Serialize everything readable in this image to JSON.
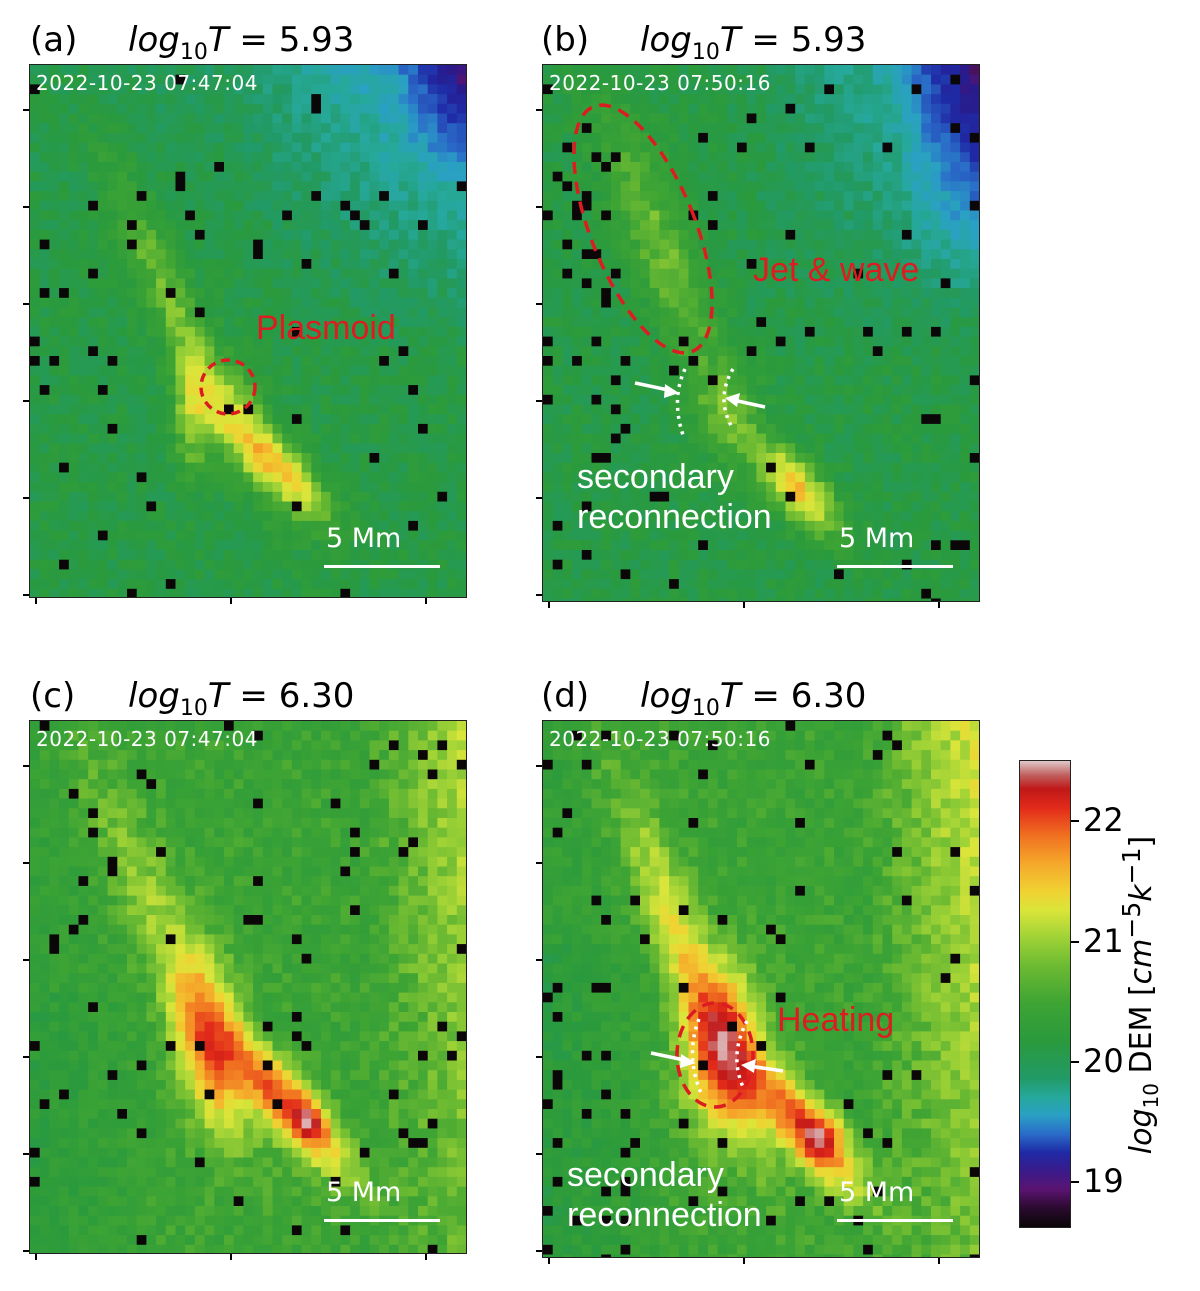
{
  "panels": [
    {
      "letter": "(a)",
      "title_var": "log",
      "title_sub": "10",
      "title_T": "T",
      "title_val": " = 5.93",
      "timestamp": "2022-10-23 07:47:04",
      "scale_label": "5 Mm"
    },
    {
      "letter": "(b)",
      "title_var": "log",
      "title_sub": "10",
      "title_T": "T",
      "title_val": " = 5.93",
      "timestamp": "2022-10-23 07:50:16",
      "scale_label": "5 Mm"
    },
    {
      "letter": "(c)",
      "title_var": "log",
      "title_sub": "10",
      "title_T": "T",
      "title_val": " = 6.30",
      "timestamp": "2022-10-23 07:47:04",
      "scale_label": "5 Mm"
    },
    {
      "letter": "(d)",
      "title_var": "log",
      "title_sub": "10",
      "title_T": "T",
      "title_val": " = 6.30",
      "timestamp": "2022-10-23 07:50:16",
      "scale_label": "5 Mm"
    }
  ],
  "annotations": {
    "plasmoid": "Plasmoid",
    "jet_wave": "Jet & wave",
    "heating": "Heating",
    "secondary_line1": "secondary",
    "secondary_line2": "reconnection"
  },
  "colorbar": {
    "ticks": [
      "19",
      "20",
      "21",
      "22"
    ],
    "label_log": "log",
    "label_sub": "10",
    "label_rest": " DEM [",
    "label_unit": "cm",
    "label_unit_exp": "−5",
    "label_k": "k",
    "label_k_exp": "−1",
    "label_close": "]",
    "range": [
      18.6,
      22.5
    ],
    "colors": {
      "black": "#0b0608",
      "purple": "#5a1470",
      "blue": "#1f2aa6",
      "teal": "#26a89a",
      "green": "#2a9a3c",
      "yellow": "#dae53a",
      "red": "#e22a1a"
    }
  }
}
